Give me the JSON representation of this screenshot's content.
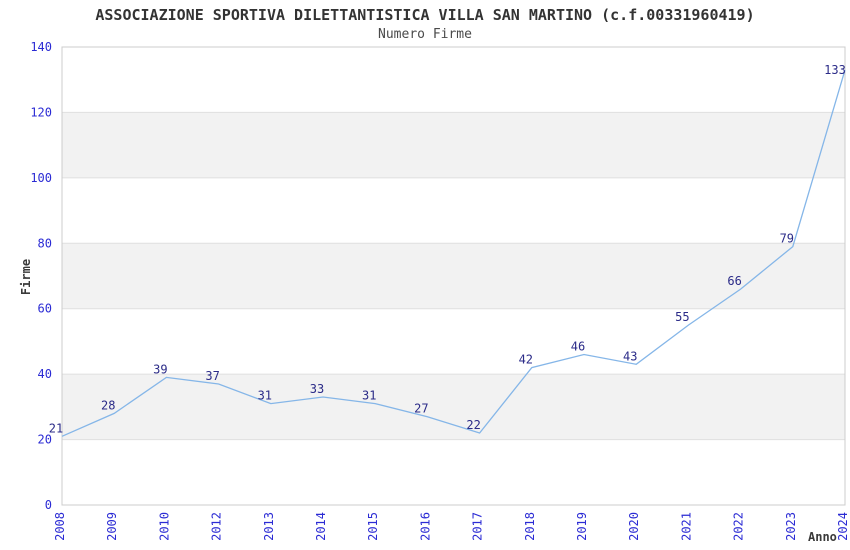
{
  "chart_data": {
    "type": "line",
    "title": "ASSOCIAZIONE SPORTIVA DILETTANTISTICA VILLA SAN MARTINO (c.f.00331960419)",
    "subtitle": "Numero Firme",
    "x": [
      "2008",
      "2009",
      "2010",
      "2012",
      "2013",
      "2014",
      "2015",
      "2016",
      "2017",
      "2018",
      "2019",
      "2020",
      "2021",
      "2022",
      "2023",
      "2024"
    ],
    "values": [
      21,
      28,
      39,
      37,
      31,
      33,
      31,
      27,
      22,
      42,
      46,
      43,
      55,
      66,
      79,
      133
    ],
    "xlabel": "Anno",
    "ylabel": "Firme",
    "ylim": [
      0,
      140
    ],
    "ytick_interval": 20,
    "yticks": [
      0,
      20,
      40,
      60,
      80,
      100,
      120,
      140
    ],
    "grid": "horizontal",
    "alternating_bands": true,
    "legend": "none",
    "data_labels": true
  },
  "colors": {
    "tick_label": "#2b2bd4",
    "data_label": "#2b2b88",
    "line": "#85b6e8",
    "band": "#f2f2f2",
    "grid": "#e0e0e0",
    "border": "#cccccc",
    "title": "#333333",
    "subtitle": "#4a4a4a",
    "axis_title": "#3a3a3a",
    "background": "#ffffff"
  }
}
